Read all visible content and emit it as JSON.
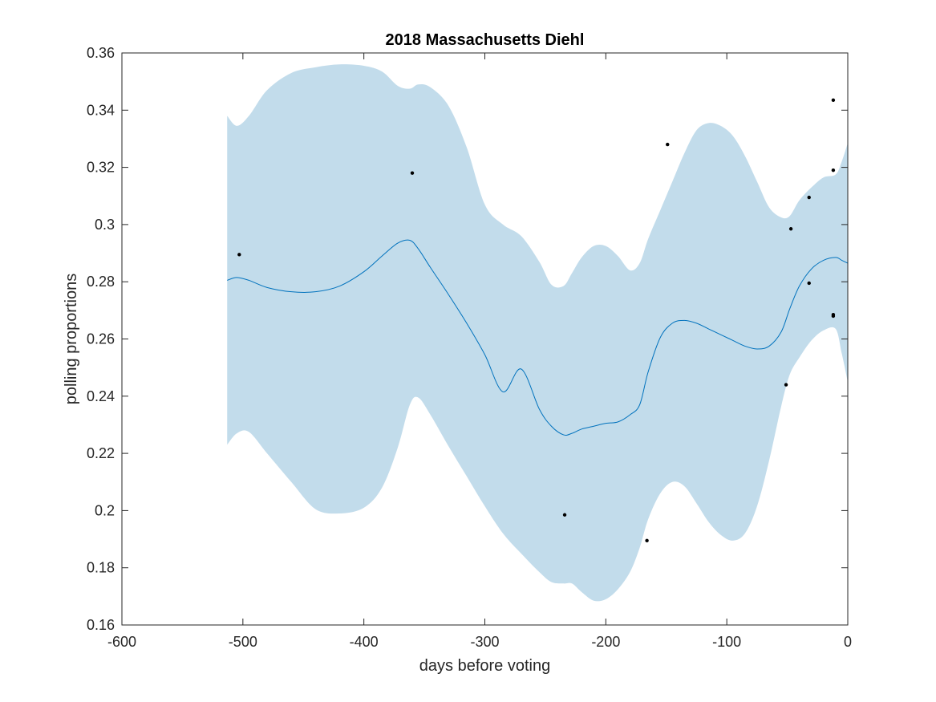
{
  "chart_data": {
    "type": "line",
    "title": "2018 Massachusetts Diehl",
    "xlabel": "days before voting",
    "ylabel": "polling proportions",
    "xlim": [
      -600,
      0
    ],
    "ylim": [
      0.16,
      0.36
    ],
    "xticks": [
      -600,
      -500,
      -400,
      -300,
      -200,
      -100,
      0
    ],
    "xtick_labels": [
      "-600",
      "-500",
      "-400",
      "-300",
      "-200",
      "-100",
      "0"
    ],
    "yticks": [
      0.16,
      0.18,
      0.2,
      0.22,
      0.24,
      0.26,
      0.28,
      0.3,
      0.32,
      0.34,
      0.36
    ],
    "ytick_labels": [
      "0.16",
      "0.18",
      "0.2",
      "0.22",
      "0.24",
      "0.26",
      "0.28",
      "0.3",
      "0.32",
      "0.34",
      "0.36"
    ],
    "grid": false,
    "colors": {
      "mean_line": "#0072BD",
      "band_fill": "#c2dceb",
      "points": "#000000",
      "axes": "#262626"
    },
    "band": {
      "x": [
        -513,
        -505,
        -495,
        -480,
        -460,
        -440,
        -420,
        -400,
        -385,
        -372,
        -362,
        -355,
        -345,
        -330,
        -315,
        -300,
        -285,
        -270,
        -255,
        -245,
        -235,
        -228,
        -220,
        -210,
        -200,
        -190,
        -180,
        -172,
        -165,
        -155,
        -145,
        -135,
        -125,
        -115,
        -105,
        -95,
        -85,
        -75,
        -65,
        -55,
        -48,
        -40,
        -30,
        -20,
        -10,
        -5,
        0
      ],
      "upper": [
        0.338,
        0.3345,
        0.338,
        0.347,
        0.353,
        0.355,
        0.356,
        0.3555,
        0.3535,
        0.3485,
        0.3475,
        0.349,
        0.348,
        0.3415,
        0.327,
        0.307,
        0.3,
        0.296,
        0.287,
        0.279,
        0.2785,
        0.283,
        0.2885,
        0.2925,
        0.2925,
        0.289,
        0.284,
        0.2865,
        0.295,
        0.305,
        0.315,
        0.325,
        0.333,
        0.3355,
        0.3345,
        0.331,
        0.324,
        0.315,
        0.306,
        0.3025,
        0.303,
        0.3085,
        0.313,
        0.3165,
        0.3175,
        0.322,
        0.3285
      ],
      "lower": [
        0.223,
        0.227,
        0.2275,
        0.22,
        0.21,
        0.2005,
        0.199,
        0.201,
        0.208,
        0.222,
        0.237,
        0.2395,
        0.2335,
        0.2225,
        0.212,
        0.2015,
        0.192,
        0.185,
        0.1785,
        0.175,
        0.1745,
        0.1745,
        0.1715,
        0.1685,
        0.169,
        0.1725,
        0.1785,
        0.187,
        0.197,
        0.206,
        0.21,
        0.2085,
        0.2025,
        0.196,
        0.1915,
        0.1895,
        0.192,
        0.2015,
        0.2175,
        0.2365,
        0.2475,
        0.2535,
        0.2595,
        0.263,
        0.2635,
        0.255,
        0.245
      ]
    },
    "series": [
      {
        "x": [
          -513,
          -505,
          -495,
          -480,
          -460,
          -440,
          -420,
          -400,
          -385,
          -372,
          -362,
          -355,
          -345,
          -330,
          -315,
          -300,
          -285,
          -270,
          -255,
          -245,
          -235,
          -228,
          -220,
          -210,
          -200,
          -190,
          -180,
          -172,
          -165,
          -155,
          -145,
          -135,
          -125,
          -115,
          -105,
          -95,
          -85,
          -75,
          -65,
          -55,
          -48,
          -40,
          -30,
          -20,
          -10,
          -5,
          0
        ],
        "values": [
          0.2805,
          0.2815,
          0.2805,
          0.278,
          0.2765,
          0.2765,
          0.2785,
          0.2835,
          0.289,
          0.2935,
          0.2945,
          0.2915,
          0.285,
          0.2755,
          0.2655,
          0.2545,
          0.2415,
          0.2495,
          0.2355,
          0.2295,
          0.2265,
          0.227,
          0.2285,
          0.2295,
          0.2305,
          0.231,
          0.2335,
          0.237,
          0.2485,
          0.2605,
          0.2655,
          0.2665,
          0.2655,
          0.2635,
          0.2615,
          0.2595,
          0.2575,
          0.2565,
          0.2575,
          0.2625,
          0.2705,
          0.2785,
          0.2845,
          0.2875,
          0.2885,
          0.2875,
          0.2865
        ]
      }
    ],
    "points": [
      {
        "x": -503,
        "y": 0.2895
      },
      {
        "x": -360,
        "y": 0.318
      },
      {
        "x": -234,
        "y": 0.1985
      },
      {
        "x": -166,
        "y": 0.1895
      },
      {
        "x": -149,
        "y": 0.328
      },
      {
        "x": -51,
        "y": 0.244
      },
      {
        "x": -47,
        "y": 0.2985
      },
      {
        "x": -32,
        "y": 0.3095
      },
      {
        "x": -32,
        "y": 0.2795
      },
      {
        "x": -12,
        "y": 0.3435
      },
      {
        "x": -12,
        "y": 0.319
      },
      {
        "x": -12,
        "y": 0.2685
      },
      {
        "x": -12,
        "y": 0.268
      }
    ]
  }
}
